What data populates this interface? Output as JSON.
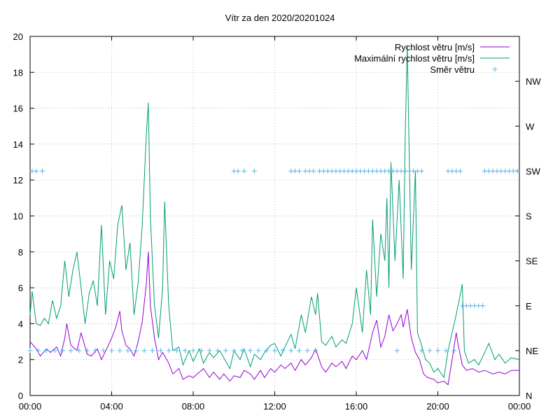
{
  "chart_data": {
    "type": "line",
    "title": "Vítr za den 2020/20201024",
    "xlim": [
      0,
      24
    ],
    "ylim": [
      0,
      20
    ],
    "x_tick_labels": [
      "00:00",
      "04:00",
      "08:00",
      "12:00",
      "16:00",
      "20:00",
      "00:00"
    ],
    "y_tick_labels": [
      "0",
      "2",
      "4",
      "6",
      "8",
      "10",
      "12",
      "14",
      "16",
      "18",
      "20"
    ],
    "y2_tick_labels": [
      "N",
      "NE",
      "E",
      "SE",
      "S",
      "SW",
      "W",
      "NW"
    ],
    "legend_position": "top-right",
    "series": [
      {
        "name": "Rychlost větru [m/s]",
        "color": "#9400d3",
        "style": "line",
        "points": [
          [
            0.0,
            3.0
          ],
          [
            0.3,
            2.6
          ],
          [
            0.5,
            2.2
          ],
          [
            0.8,
            2.6
          ],
          [
            1.0,
            2.4
          ],
          [
            1.3,
            2.7
          ],
          [
            1.5,
            2.2
          ],
          [
            1.7,
            3.2
          ],
          [
            1.8,
            4.0
          ],
          [
            2.0,
            2.8
          ],
          [
            2.3,
            2.5
          ],
          [
            2.5,
            3.5
          ],
          [
            2.8,
            2.3
          ],
          [
            3.0,
            2.2
          ],
          [
            3.3,
            2.6
          ],
          [
            3.5,
            2.0
          ],
          [
            3.8,
            2.7
          ],
          [
            4.0,
            3.2
          ],
          [
            4.2,
            3.8
          ],
          [
            4.4,
            4.7
          ],
          [
            4.5,
            3.6
          ],
          [
            4.7,
            2.8
          ],
          [
            4.9,
            2.6
          ],
          [
            5.1,
            2.2
          ],
          [
            5.3,
            3.0
          ],
          [
            5.5,
            4.1
          ],
          [
            5.7,
            6.2
          ],
          [
            5.8,
            8.0
          ],
          [
            5.9,
            5.0
          ],
          [
            6.1,
            3.2
          ],
          [
            6.3,
            2.0
          ],
          [
            6.5,
            2.4
          ],
          [
            6.8,
            1.8
          ],
          [
            7.0,
            1.2
          ],
          [
            7.3,
            1.5
          ],
          [
            7.5,
            0.9
          ],
          [
            7.8,
            1.1
          ],
          [
            8.0,
            1.0
          ],
          [
            8.3,
            1.3
          ],
          [
            8.5,
            1.5
          ],
          [
            8.8,
            1.0
          ],
          [
            9.0,
            1.3
          ],
          [
            9.3,
            0.9
          ],
          [
            9.5,
            1.2
          ],
          [
            9.8,
            0.8
          ],
          [
            10.0,
            1.1
          ],
          [
            10.3,
            1.0
          ],
          [
            10.5,
            1.4
          ],
          [
            10.8,
            1.2
          ],
          [
            11.0,
            0.9
          ],
          [
            11.3,
            1.4
          ],
          [
            11.5,
            1.0
          ],
          [
            11.8,
            1.5
          ],
          [
            12.0,
            1.3
          ],
          [
            12.3,
            1.7
          ],
          [
            12.5,
            1.5
          ],
          [
            12.8,
            1.8
          ],
          [
            13.0,
            1.4
          ],
          [
            13.3,
            2.0
          ],
          [
            13.5,
            1.7
          ],
          [
            13.8,
            2.1
          ],
          [
            14.0,
            2.6
          ],
          [
            14.3,
            1.6
          ],
          [
            14.5,
            1.3
          ],
          [
            14.8,
            1.8
          ],
          [
            15.0,
            1.6
          ],
          [
            15.3,
            1.9
          ],
          [
            15.5,
            1.5
          ],
          [
            15.8,
            2.2
          ],
          [
            16.0,
            2.0
          ],
          [
            16.3,
            2.5
          ],
          [
            16.5,
            2.0
          ],
          [
            16.8,
            3.5
          ],
          [
            17.0,
            4.2
          ],
          [
            17.2,
            2.7
          ],
          [
            17.4,
            3.3
          ],
          [
            17.6,
            4.5
          ],
          [
            17.8,
            3.6
          ],
          [
            18.0,
            4.0
          ],
          [
            18.2,
            4.5
          ],
          [
            18.3,
            3.8
          ],
          [
            18.5,
            4.8
          ],
          [
            18.7,
            3.2
          ],
          [
            18.9,
            2.4
          ],
          [
            19.1,
            2.0
          ],
          [
            19.3,
            1.2
          ],
          [
            19.5,
            1.0
          ],
          [
            19.8,
            0.9
          ],
          [
            20.0,
            0.7
          ],
          [
            20.3,
            0.8
          ],
          [
            20.5,
            0.6
          ],
          [
            20.7,
            2.0
          ],
          [
            20.9,
            3.5
          ],
          [
            21.0,
            2.8
          ],
          [
            21.2,
            1.7
          ],
          [
            21.4,
            1.4
          ],
          [
            21.7,
            1.5
          ],
          [
            22.0,
            1.3
          ],
          [
            22.3,
            1.4
          ],
          [
            22.7,
            1.2
          ],
          [
            23.0,
            1.3
          ],
          [
            23.3,
            1.2
          ],
          [
            23.6,
            1.4
          ],
          [
            24.0,
            1.4
          ]
        ]
      },
      {
        "name": "Maximální rychlost větru [m/s]",
        "color": "#009e73",
        "style": "line",
        "points": [
          [
            0.0,
            4.5
          ],
          [
            0.1,
            5.8
          ],
          [
            0.3,
            4.0
          ],
          [
            0.5,
            3.9
          ],
          [
            0.7,
            4.3
          ],
          [
            0.9,
            4.0
          ],
          [
            1.1,
            5.3
          ],
          [
            1.3,
            4.3
          ],
          [
            1.5,
            5.0
          ],
          [
            1.7,
            7.5
          ],
          [
            1.9,
            5.5
          ],
          [
            2.1,
            7.0
          ],
          [
            2.3,
            8.0
          ],
          [
            2.5,
            6.0
          ],
          [
            2.7,
            4.0
          ],
          [
            2.9,
            5.7
          ],
          [
            3.1,
            6.4
          ],
          [
            3.3,
            5.0
          ],
          [
            3.5,
            9.5
          ],
          [
            3.7,
            4.5
          ],
          [
            3.9,
            7.5
          ],
          [
            4.1,
            6.5
          ],
          [
            4.3,
            9.5
          ],
          [
            4.5,
            10.6
          ],
          [
            4.7,
            7.0
          ],
          [
            4.9,
            8.5
          ],
          [
            5.1,
            4.5
          ],
          [
            5.3,
            6.3
          ],
          [
            5.5,
            9.5
          ],
          [
            5.7,
            14.5
          ],
          [
            5.8,
            16.3
          ],
          [
            5.9,
            10.0
          ],
          [
            6.1,
            5.0
          ],
          [
            6.3,
            3.2
          ],
          [
            6.5,
            6.0
          ],
          [
            6.6,
            10.8
          ],
          [
            6.8,
            5.0
          ],
          [
            7.0,
            2.5
          ],
          [
            7.3,
            2.7
          ],
          [
            7.5,
            1.7
          ],
          [
            7.8,
            2.5
          ],
          [
            8.0,
            1.9
          ],
          [
            8.3,
            2.6
          ],
          [
            8.5,
            1.8
          ],
          [
            8.8,
            2.4
          ],
          [
            9.0,
            2.1
          ],
          [
            9.3,
            2.5
          ],
          [
            9.5,
            2.1
          ],
          [
            9.8,
            1.5
          ],
          [
            10.0,
            2.5
          ],
          [
            10.3,
            2.0
          ],
          [
            10.5,
            2.6
          ],
          [
            10.8,
            1.6
          ],
          [
            11.0,
            2.3
          ],
          [
            11.3,
            2.0
          ],
          [
            11.5,
            2.4
          ],
          [
            11.8,
            2.8
          ],
          [
            12.0,
            2.9
          ],
          [
            12.3,
            2.2
          ],
          [
            12.5,
            2.7
          ],
          [
            12.8,
            3.4
          ],
          [
            13.0,
            2.6
          ],
          [
            13.3,
            4.5
          ],
          [
            13.5,
            3.5
          ],
          [
            13.8,
            5.5
          ],
          [
            14.0,
            4.5
          ],
          [
            14.1,
            5.7
          ],
          [
            14.3,
            3.0
          ],
          [
            14.5,
            2.8
          ],
          [
            14.8,
            3.3
          ],
          [
            15.0,
            2.7
          ],
          [
            15.3,
            3.1
          ],
          [
            15.5,
            2.9
          ],
          [
            15.8,
            4.0
          ],
          [
            16.0,
            6.0
          ],
          [
            16.3,
            3.5
          ],
          [
            16.5,
            7.0
          ],
          [
            16.7,
            4.5
          ],
          [
            16.8,
            9.8
          ],
          [
            17.0,
            5.5
          ],
          [
            17.2,
            9.0
          ],
          [
            17.4,
            7.5
          ],
          [
            17.5,
            11.0
          ],
          [
            17.6,
            6.0
          ],
          [
            17.7,
            13.0
          ],
          [
            17.9,
            7.5
          ],
          [
            18.1,
            12.0
          ],
          [
            18.3,
            6.5
          ],
          [
            18.4,
            14.5
          ],
          [
            18.5,
            19.5
          ],
          [
            18.7,
            7.0
          ],
          [
            18.9,
            12.5
          ],
          [
            19.0,
            3.5
          ],
          [
            19.2,
            2.8
          ],
          [
            19.4,
            2.0
          ],
          [
            19.6,
            1.8
          ],
          [
            19.8,
            1.3
          ],
          [
            20.0,
            1.5
          ],
          [
            20.3,
            1.0
          ],
          [
            20.5,
            2.5
          ],
          [
            20.7,
            3.5
          ],
          [
            20.9,
            4.5
          ],
          [
            21.1,
            5.6
          ],
          [
            21.2,
            6.2
          ],
          [
            21.3,
            2.5
          ],
          [
            21.5,
            1.8
          ],
          [
            21.8,
            2.0
          ],
          [
            22.0,
            1.7
          ],
          [
            22.3,
            2.4
          ],
          [
            22.5,
            2.9
          ],
          [
            22.8,
            2.0
          ],
          [
            23.0,
            2.3
          ],
          [
            23.3,
            1.8
          ],
          [
            23.6,
            2.1
          ],
          [
            24.0,
            2.0
          ]
        ]
      },
      {
        "name": "Směr větru",
        "color": "#56b4e9",
        "style": "points",
        "points": [
          [
            0.1,
            12.5
          ],
          [
            0.3,
            12.5
          ],
          [
            0.6,
            12.5
          ],
          [
            10.0,
            12.5
          ],
          [
            10.2,
            12.5
          ],
          [
            10.5,
            12.5
          ],
          [
            11.0,
            12.5
          ],
          [
            12.8,
            12.5
          ],
          [
            13.0,
            12.5
          ],
          [
            13.2,
            12.5
          ],
          [
            13.5,
            12.5
          ],
          [
            13.7,
            12.5
          ],
          [
            13.9,
            12.5
          ],
          [
            14.2,
            12.5
          ],
          [
            14.4,
            12.5
          ],
          [
            14.6,
            12.5
          ],
          [
            14.8,
            12.5
          ],
          [
            15.0,
            12.5
          ],
          [
            15.2,
            12.5
          ],
          [
            15.4,
            12.5
          ],
          [
            15.6,
            12.5
          ],
          [
            15.8,
            12.5
          ],
          [
            16.0,
            12.5
          ],
          [
            16.2,
            12.5
          ],
          [
            16.4,
            12.5
          ],
          [
            16.6,
            12.5
          ],
          [
            16.8,
            12.5
          ],
          [
            17.0,
            12.5
          ],
          [
            17.2,
            12.5
          ],
          [
            17.4,
            12.5
          ],
          [
            17.6,
            12.5
          ],
          [
            17.8,
            12.5
          ],
          [
            18.0,
            12.5
          ],
          [
            18.2,
            12.5
          ],
          [
            18.4,
            12.5
          ],
          [
            18.6,
            12.5
          ],
          [
            18.8,
            12.5
          ],
          [
            19.0,
            12.5
          ],
          [
            19.2,
            12.5
          ],
          [
            20.5,
            12.5
          ],
          [
            20.7,
            12.5
          ],
          [
            20.9,
            12.5
          ],
          [
            21.1,
            12.5
          ],
          [
            22.3,
            12.5
          ],
          [
            22.5,
            12.5
          ],
          [
            22.7,
            12.5
          ],
          [
            22.9,
            12.5
          ],
          [
            23.1,
            12.5
          ],
          [
            23.3,
            12.5
          ],
          [
            23.5,
            12.5
          ],
          [
            23.7,
            12.5
          ],
          [
            23.9,
            12.5
          ],
          [
            21.2,
            5.0
          ],
          [
            21.4,
            5.0
          ],
          [
            21.6,
            5.0
          ],
          [
            21.8,
            5.0
          ],
          [
            22.0,
            5.0
          ],
          [
            22.2,
            5.0
          ],
          [
            0.0,
            2.5
          ],
          [
            0.4,
            2.5
          ],
          [
            0.8,
            2.5
          ],
          [
            1.2,
            2.5
          ],
          [
            1.6,
            2.5
          ],
          [
            2.0,
            2.5
          ],
          [
            2.4,
            2.5
          ],
          [
            2.8,
            2.5
          ],
          [
            3.2,
            2.5
          ],
          [
            3.6,
            2.5
          ],
          [
            4.0,
            2.5
          ],
          [
            4.4,
            2.5
          ],
          [
            4.8,
            2.5
          ],
          [
            5.2,
            2.5
          ],
          [
            5.6,
            2.5
          ],
          [
            6.0,
            2.5
          ],
          [
            6.4,
            2.5
          ],
          [
            6.8,
            2.5
          ],
          [
            7.2,
            2.5
          ],
          [
            7.6,
            2.5
          ],
          [
            8.0,
            2.5
          ],
          [
            8.4,
            2.5
          ],
          [
            8.8,
            2.5
          ],
          [
            9.2,
            2.5
          ],
          [
            9.6,
            2.5
          ],
          [
            10.0,
            2.5
          ],
          [
            10.4,
            2.5
          ],
          [
            10.8,
            2.5
          ],
          [
            11.2,
            2.5
          ],
          [
            11.6,
            2.5
          ],
          [
            12.0,
            2.5
          ],
          [
            12.4,
            2.5
          ],
          [
            12.8,
            2.5
          ],
          [
            13.2,
            2.5
          ],
          [
            13.6,
            2.5
          ],
          [
            14.0,
            2.5
          ],
          [
            18.0,
            2.5
          ],
          [
            19.2,
            2.5
          ],
          [
            19.6,
            2.5
          ],
          [
            20.0,
            2.5
          ],
          [
            20.4,
            2.5
          ],
          [
            20.8,
            2.5
          ]
        ]
      }
    ]
  }
}
